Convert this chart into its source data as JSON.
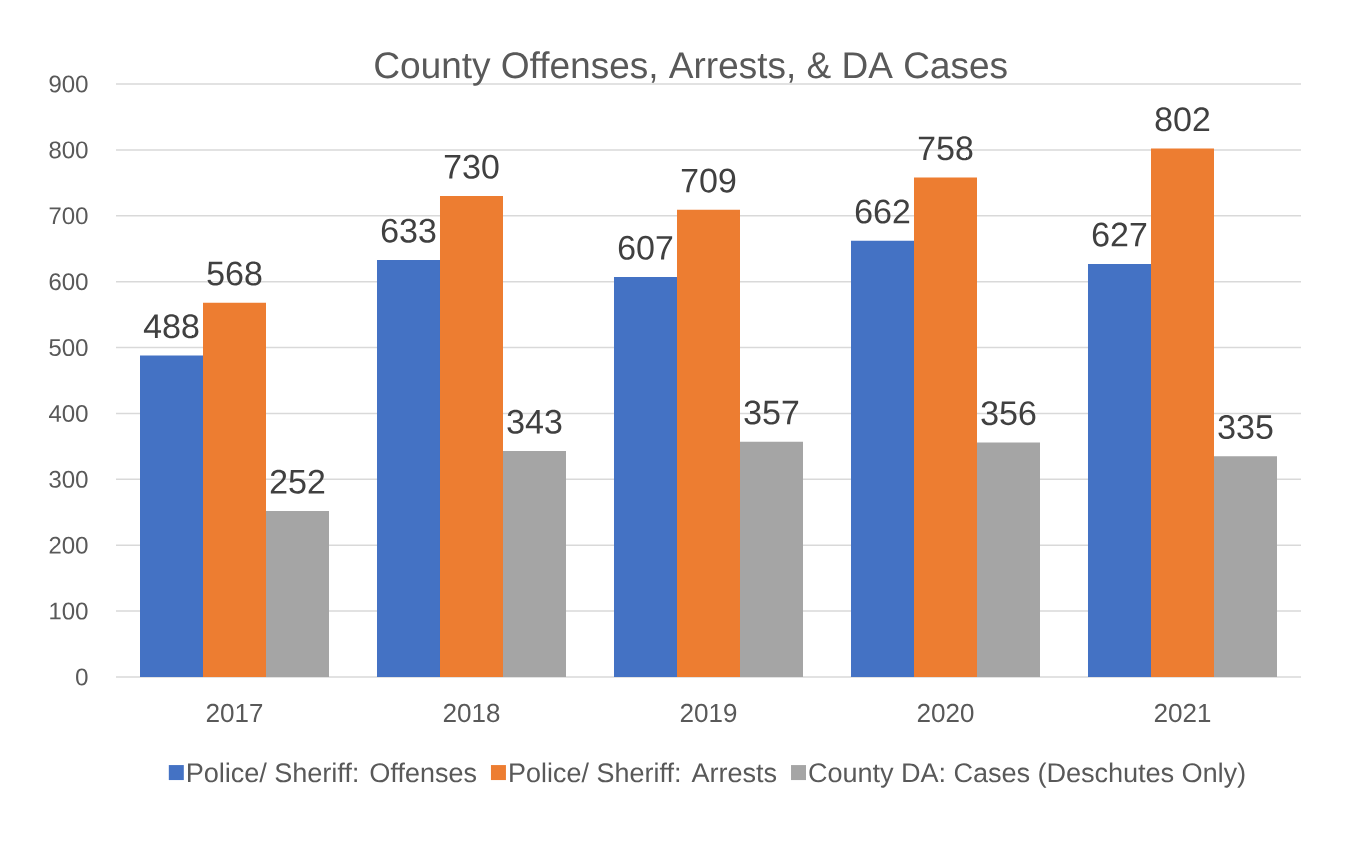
{
  "chart_data": {
    "type": "bar",
    "title": "County Offenses, Arrests, & DA Cases",
    "categories": [
      "2017",
      "2018",
      "2019",
      "2020",
      "2021"
    ],
    "series": [
      {
        "name": "Police/ Sheriff: Offenses",
        "color": "#4472c4",
        "values": [
          488,
          633,
          607,
          662,
          627
        ]
      },
      {
        "name": "Police/ Sheriff: Arrests",
        "color": "#ed7d31",
        "values": [
          568,
          730,
          709,
          758,
          802
        ]
      },
      {
        "name": "County DA: Cases (Deschutes Only)",
        "color": "#a5a5a5",
        "values": [
          252,
          343,
          357,
          356,
          335
        ]
      }
    ],
    "ylim": [
      0,
      900
    ],
    "yticks": [
      0,
      100,
      200,
      300,
      400,
      500,
      600,
      700,
      800,
      900
    ],
    "grid": "y",
    "legend": "bottom",
    "data_labels": true
  }
}
